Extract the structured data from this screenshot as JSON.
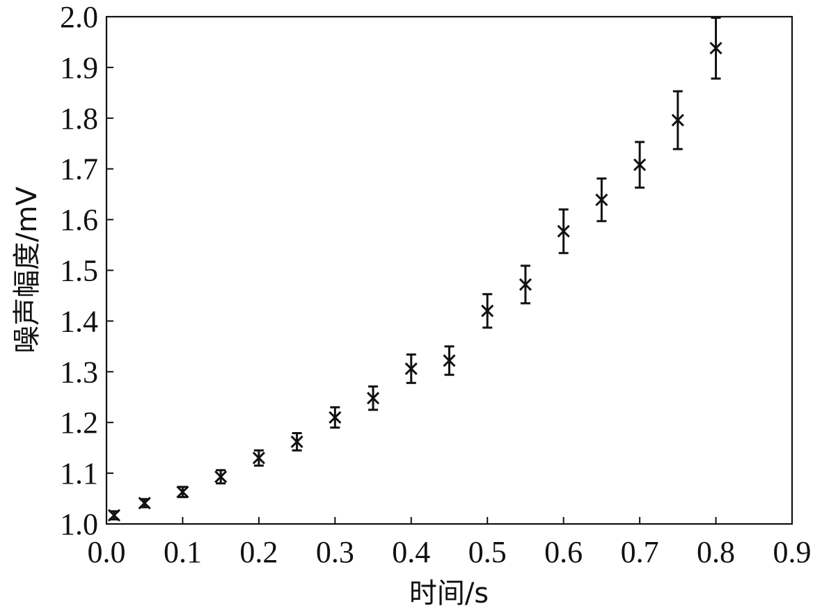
{
  "chart_data": {
    "type": "scatter",
    "xlabel": "时间/s",
    "ylabel": "噪声幅度/mV",
    "xlim": [
      0.0,
      0.9
    ],
    "ylim": [
      1.0,
      2.0
    ],
    "x_ticks": [
      "0.0",
      "0.1",
      "0.2",
      "0.3",
      "0.4",
      "0.5",
      "0.6",
      "0.7",
      "0.8",
      "0.9"
    ],
    "y_ticks": [
      "1.0",
      "1.1",
      "1.2",
      "1.3",
      "1.4",
      "1.5",
      "1.6",
      "1.7",
      "1.8",
      "1.9",
      "2.0"
    ],
    "grid": false,
    "marker": "x",
    "series": [
      {
        "x": [
          0.01,
          0.05,
          0.1,
          0.15,
          0.2,
          0.25,
          0.3,
          0.35,
          0.4,
          0.45,
          0.5,
          0.55,
          0.6,
          0.65,
          0.7,
          0.75,
          0.8
        ],
        "y": [
          1.017,
          1.041,
          1.063,
          1.093,
          1.13,
          1.162,
          1.21,
          1.248,
          1.306,
          1.322,
          1.42,
          1.472,
          1.577,
          1.639,
          1.708,
          1.796,
          1.938
        ],
        "err": [
          0.008,
          0.008,
          0.01,
          0.013,
          0.015,
          0.017,
          0.02,
          0.023,
          0.028,
          0.028,
          0.033,
          0.037,
          0.043,
          0.042,
          0.045,
          0.057,
          0.06
        ]
      }
    ]
  }
}
